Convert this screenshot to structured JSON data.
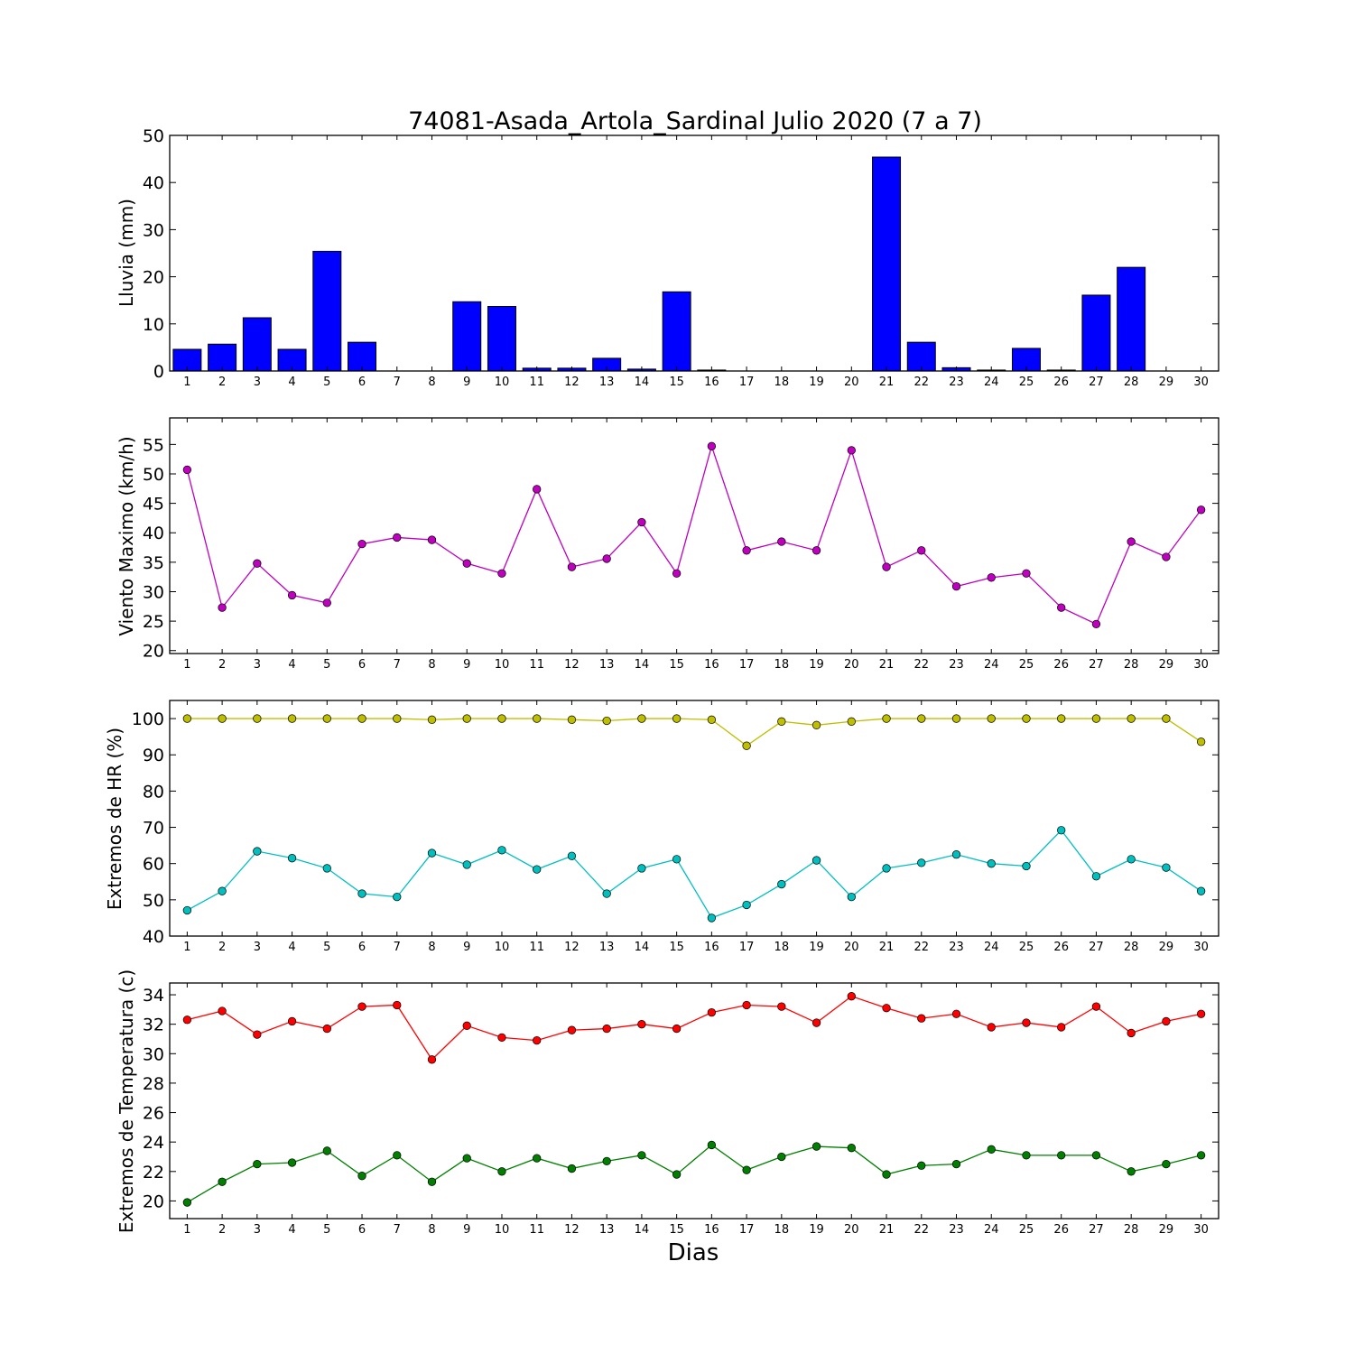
{
  "title": "74081-Asada_Artola_Sardinal Julio 2020  (7 a 7)",
  "xlabel": "Dias",
  "days": [
    1,
    2,
    3,
    4,
    5,
    6,
    7,
    8,
    9,
    10,
    11,
    12,
    13,
    14,
    15,
    16,
    17,
    18,
    19,
    20,
    21,
    22,
    23,
    24,
    25,
    26,
    27,
    28,
    29,
    30
  ],
  "chart_data": [
    {
      "type": "bar",
      "ylabel": "Lluvia (mm)",
      "ylim": [
        0,
        50
      ],
      "yticks": [
        0,
        10,
        20,
        30,
        40,
        50
      ],
      "series": [
        {
          "color": "#0000ff",
          "values": [
            4.6,
            5.7,
            11.3,
            4.6,
            25.4,
            6.1,
            0,
            0,
            14.7,
            13.7,
            0.6,
            0.6,
            2.7,
            0.4,
            16.8,
            0.2,
            0,
            0,
            0,
            0,
            45.4,
            6.1,
            0.7,
            0.2,
            4.8,
            0.2,
            16.1,
            22.0,
            0,
            0
          ]
        }
      ]
    },
    {
      "type": "line",
      "ylabel": "Viento Maximo (km/h)",
      "ylim": [
        19.5,
        59.5
      ],
      "yticks": [
        20,
        25,
        30,
        35,
        40,
        45,
        50,
        55
      ],
      "series": [
        {
          "color": "#bf00bf",
          "values": [
            50.7,
            27.3,
            34.8,
            29.4,
            28.1,
            38.1,
            39.2,
            38.8,
            34.8,
            33.1,
            47.4,
            34.2,
            35.6,
            41.8,
            33.1,
            54.7,
            37.0,
            38.5,
            37.0,
            54.0,
            34.2,
            37.0,
            30.9,
            32.4,
            33.1,
            27.3,
            24.5,
            38.5,
            35.9,
            43.9
          ]
        }
      ]
    },
    {
      "type": "line",
      "ylabel": "Extremos de HR (%)",
      "ylim": [
        40,
        105
      ],
      "yticks": [
        40,
        50,
        60,
        70,
        80,
        90,
        100
      ],
      "series": [
        {
          "color": "#bfbf00",
          "values": [
            100,
            100,
            100,
            100,
            100,
            100,
            100,
            99.7,
            100,
            100,
            100,
            99.7,
            99.4,
            100,
            100,
            99.7,
            92.5,
            99.2,
            98.2,
            99.2,
            100,
            100,
            100,
            100,
            100,
            100,
            100,
            100,
            100,
            93.6
          ]
        },
        {
          "color": "#00bfbf",
          "values": [
            47.1,
            52.4,
            63.4,
            61.5,
            58.7,
            51.7,
            50.8,
            62.9,
            59.7,
            63.7,
            58.4,
            62.1,
            51.7,
            58.7,
            61.2,
            45.0,
            48.6,
            54.3,
            60.9,
            50.8,
            58.7,
            60.2,
            62.5,
            60.0,
            59.3,
            69.2,
            56.5,
            61.2,
            58.9,
            52.4
          ]
        }
      ]
    },
    {
      "type": "line",
      "ylabel": "Extremos de Temperatura (c)",
      "ylim": [
        18.8,
        34.8
      ],
      "yticks": [
        20,
        22,
        24,
        26,
        28,
        30,
        32,
        34
      ],
      "series": [
        {
          "color": "#ff0000",
          "values": [
            32.3,
            32.9,
            31.3,
            32.2,
            31.7,
            33.2,
            33.3,
            29.6,
            31.9,
            31.1,
            30.9,
            31.6,
            31.7,
            32.0,
            31.7,
            32.8,
            33.3,
            33.2,
            32.1,
            33.9,
            33.1,
            32.4,
            32.7,
            31.8,
            32.1,
            31.8,
            33.2,
            31.4,
            32.2,
            32.7
          ]
        },
        {
          "color": "#007f00",
          "values": [
            19.9,
            21.3,
            22.5,
            22.6,
            23.4,
            21.7,
            23.1,
            21.3,
            22.9,
            22.0,
            22.9,
            22.2,
            22.7,
            23.1,
            21.8,
            23.8,
            22.1,
            23.0,
            23.7,
            23.6,
            21.8,
            22.4,
            22.5,
            23.5,
            23.1,
            23.1,
            23.1,
            22.0,
            22.5,
            23.1
          ]
        }
      ]
    }
  ]
}
